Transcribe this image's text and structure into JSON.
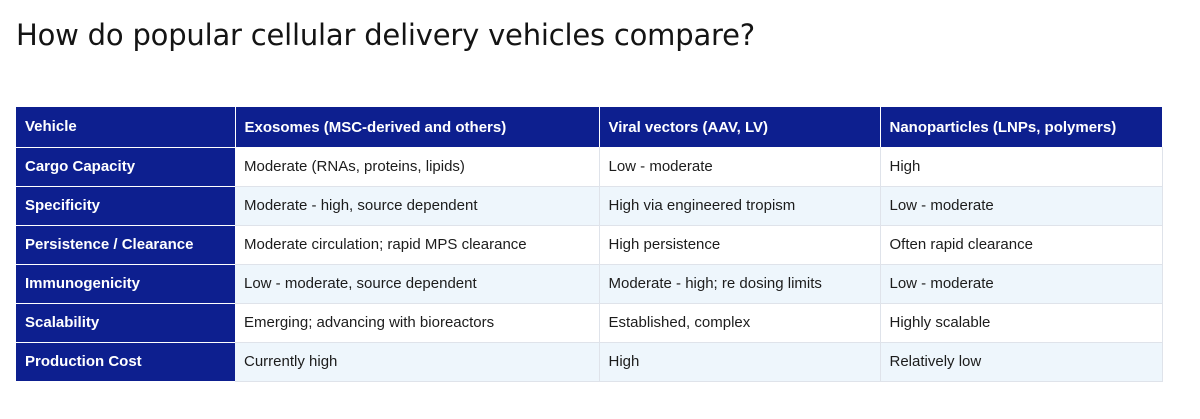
{
  "title": "How do popular cellular delivery vehicles compare?",
  "table": {
    "headers": [
      "Vehicle",
      "Exosomes (MSC-derived and others)",
      "Viral vectors (AAV, LV)",
      "Nanoparticles (LNPs, polymers)"
    ],
    "rows": [
      {
        "label": "Cargo Capacity",
        "cells": [
          "Moderate (RNAs, proteins, lipids)",
          "Low - moderate",
          "High"
        ]
      },
      {
        "label": "Specificity",
        "cells": [
          "Moderate - high, source dependent",
          "High via engineered tropism",
          "Low - moderate"
        ]
      },
      {
        "label": "Persistence / Clearance",
        "cells": [
          "Moderate circulation; rapid MPS clearance",
          "High persistence",
          "Often rapid clearance"
        ]
      },
      {
        "label": "Immunogenicity",
        "cells": [
          "Low - moderate, source dependent",
          "Moderate - high; re dosing limits",
          "Low - moderate"
        ]
      },
      {
        "label": "Scalability",
        "cells": [
          "Emerging; advancing with bioreactors",
          "Established, complex",
          "Highly scalable"
        ]
      },
      {
        "label": "Production Cost",
        "cells": [
          "Currently high",
          "High",
          "Relatively low"
        ]
      }
    ]
  },
  "colors": {
    "header_bg": "#0d1f8f",
    "alt_row_bg": "#eef6fc"
  }
}
